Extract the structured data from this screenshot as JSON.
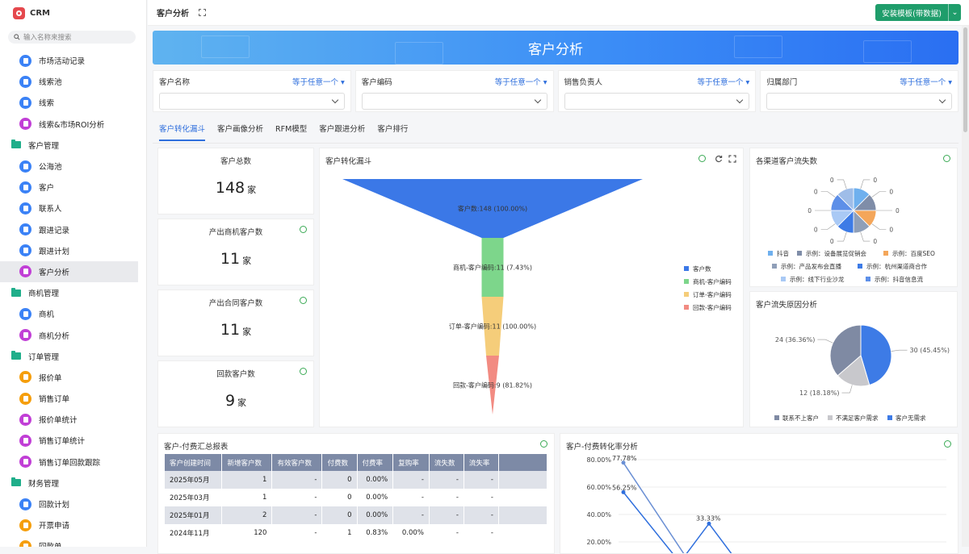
{
  "app": {
    "name": "CRM",
    "search_placeholder": "输入名称来搜索"
  },
  "colors": {
    "accent": "#2f6fdd",
    "brand": "#e5484d",
    "install": "#1f9d6b"
  },
  "sidebar": {
    "items": [
      {
        "type": "item",
        "label": "市场活动记录",
        "color": "#3b82f6",
        "icon": "document-icon"
      },
      {
        "type": "item",
        "label": "线索池",
        "color": "#3b82f6",
        "icon": "list-icon"
      },
      {
        "type": "item",
        "label": "线索",
        "color": "#3b82f6",
        "icon": "magnet-icon"
      },
      {
        "type": "item",
        "label": "线索&市场ROI分析",
        "color": "#c13fd6",
        "icon": "chart-icon"
      },
      {
        "type": "group",
        "label": "客户管理"
      },
      {
        "type": "item",
        "label": "公海池",
        "color": "#3b82f6",
        "icon": "pool-icon"
      },
      {
        "type": "item",
        "label": "客户",
        "color": "#3b82f6",
        "icon": "user-icon"
      },
      {
        "type": "item",
        "label": "联系人",
        "color": "#3b82f6",
        "icon": "contact-icon"
      },
      {
        "type": "item",
        "label": "跟进记录",
        "color": "#3b82f6",
        "icon": "record-icon"
      },
      {
        "type": "item",
        "label": "跟进计划",
        "color": "#3b82f6",
        "icon": "plan-icon"
      },
      {
        "type": "item",
        "label": "客户分析",
        "color": "#c13fd6",
        "icon": "chart-icon",
        "active": true
      },
      {
        "type": "group",
        "label": "商机管理"
      },
      {
        "type": "item",
        "label": "商机",
        "color": "#3b82f6",
        "icon": "opportunity-icon"
      },
      {
        "type": "item",
        "label": "商机分析",
        "color": "#c13fd6",
        "icon": "chart-icon"
      },
      {
        "type": "group",
        "label": "订单管理"
      },
      {
        "type": "item",
        "label": "报价单",
        "color": "#f59e0b",
        "icon": "quote-icon"
      },
      {
        "type": "item",
        "label": "销售订单",
        "color": "#f59e0b",
        "icon": "order-icon"
      },
      {
        "type": "item",
        "label": "报价单统计",
        "color": "#c13fd6",
        "icon": "chart-icon"
      },
      {
        "type": "item",
        "label": "销售订单统计",
        "color": "#c13fd6",
        "icon": "chart-icon"
      },
      {
        "type": "item",
        "label": "销售订单回款跟踪",
        "color": "#c13fd6",
        "icon": "chart-icon"
      },
      {
        "type": "group",
        "label": "财务管理"
      },
      {
        "type": "item",
        "label": "回款计划",
        "color": "#3b82f6",
        "icon": "payment-plan-icon"
      },
      {
        "type": "item",
        "label": "开票申请",
        "color": "#f59e0b",
        "icon": "invoice-icon"
      },
      {
        "type": "item",
        "label": "回款单",
        "color": "#f59e0b",
        "icon": "receipt-icon"
      }
    ]
  },
  "topbar": {
    "title": "客户分析",
    "install_label": "安装模板(带数据)",
    "install_arrow": "⌄"
  },
  "banner": {
    "title": "客户分析"
  },
  "filters": [
    {
      "label": "客户名称",
      "op": "等于任意一个 ▾"
    },
    {
      "label": "客户编码",
      "op": "等于任意一个 ▾"
    },
    {
      "label": "销售负责人",
      "op": "等于任意一个 ▾"
    },
    {
      "label": "归属部门",
      "op": "等于任意一个 ▾"
    }
  ],
  "tabs": [
    {
      "label": "客户转化漏斗",
      "active": true
    },
    {
      "label": "客户画像分析"
    },
    {
      "label": "RFM模型"
    },
    {
      "label": "客户跟进分析"
    },
    {
      "label": "客户排行"
    }
  ],
  "kpis": [
    {
      "title": "客户总数",
      "value": "148",
      "unit": "家",
      "info": false
    },
    {
      "title": "产出商机客户数",
      "value": "11",
      "unit": "家",
      "info": true
    },
    {
      "title": "产出合同客户数",
      "value": "11",
      "unit": "家",
      "info": true
    },
    {
      "title": "回款客户数",
      "value": "9",
      "unit": "家",
      "info": true
    }
  ],
  "funnel": {
    "title": "客户转化漏斗",
    "chart_data": {
      "type": "funnel",
      "stages": [
        {
          "name": "客户数",
          "value": 148,
          "label": "客户数:148 (100.00%)",
          "color": "#3b78e7"
        },
        {
          "name": "商机-客户编码",
          "value": 11,
          "label": "商机-客户编码:11 (7.43%)",
          "color": "#7dd68b"
        },
        {
          "name": "订单-客户编码",
          "value": 11,
          "label": "订单-客户编码:11 (100.00%)",
          "color": "#f5cd7a"
        },
        {
          "name": "回款-客户编码",
          "value": 9,
          "label": "回款-客户编码:9 (81.82%)",
          "color": "#f28b82"
        }
      ]
    }
  },
  "channel_pie": {
    "title": "各渠道客户流失数",
    "chart_data": {
      "type": "pie",
      "slices": [
        {
          "name": "抖音",
          "value": 0,
          "color": "#6fb0ee"
        },
        {
          "name": "示例：设备展览促销会",
          "value": 0,
          "color": "#7f8da8"
        },
        {
          "name": "示例：百度SEO",
          "value": 0,
          "color": "#f4a65a"
        },
        {
          "name": "示例：产品发布会直播",
          "value": 0,
          "color": "#8f9fb8"
        },
        {
          "name": "示例：杭州渠道商合作",
          "value": 0,
          "color": "#3d7be6"
        },
        {
          "name": "示例：线下行业沙龙",
          "value": 0,
          "color": "#a9c9f5"
        },
        {
          "name": "示例：抖音信息流",
          "value": 0,
          "color": "#5d8fe8"
        },
        {
          "name": "",
          "value": 0,
          "color": "#9fbde8"
        }
      ],
      "labels": [
        "0",
        "0",
        "0",
        "0",
        "0",
        "0",
        "0",
        "0",
        "0",
        "0"
      ]
    }
  },
  "reason_pie": {
    "title": "客户流失原因分析",
    "chart_data": {
      "type": "pie",
      "slices": [
        {
          "name": "客户无需求",
          "value": 30,
          "label": "30 (45.45%)",
          "color": "#3d7be6"
        },
        {
          "name": "不满足客户需求",
          "value": 12,
          "label": "12 (18.18%)",
          "color": "#c8c8cc"
        },
        {
          "name": "联系不上客户",
          "value": 24,
          "label": "24 (36.36%)",
          "color": "#7f8aa3"
        }
      ],
      "legend_order": [
        "联系不上客户",
        "不满足客户需求",
        "客户无需求"
      ]
    }
  },
  "summary_table": {
    "title": "客户-付费汇总报表",
    "columns": [
      "客户创建时间",
      "新增客户数",
      "有效客户数",
      "付费数",
      "付费率",
      "复购率",
      "流失数",
      "流失率"
    ],
    "rows": [
      [
        "2025年05月",
        "1",
        "-",
        "0",
        "0.00%",
        "-",
        "-",
        "-"
      ],
      [
        "2025年03月",
        "1",
        "-",
        "0",
        "0.00%",
        "-",
        "-",
        "-"
      ],
      [
        "2025年01月",
        "2",
        "-",
        "0",
        "0.00%",
        "-",
        "-",
        "-"
      ],
      [
        "2024年11月",
        "120",
        "-",
        "1",
        "0.83%",
        "0.00%",
        "-",
        "-"
      ]
    ]
  },
  "rate_chart": {
    "title": "客户-付费转化率分析",
    "chart_data": {
      "type": "line",
      "ytick_labels": [
        "80.00%",
        "60.00%",
        "40.00%",
        "20.00%"
      ],
      "yticks": [
        80,
        60,
        40,
        20
      ],
      "series": [
        {
          "values": [
            77.78,
            33.33
          ],
          "color": "#6a8fd4"
        },
        {
          "values": [
            56.25,
            33.33
          ],
          "color": "#2f6fdd"
        }
      ],
      "point_labels": [
        "77.78%",
        "56.25%",
        "33.33%"
      ]
    }
  }
}
